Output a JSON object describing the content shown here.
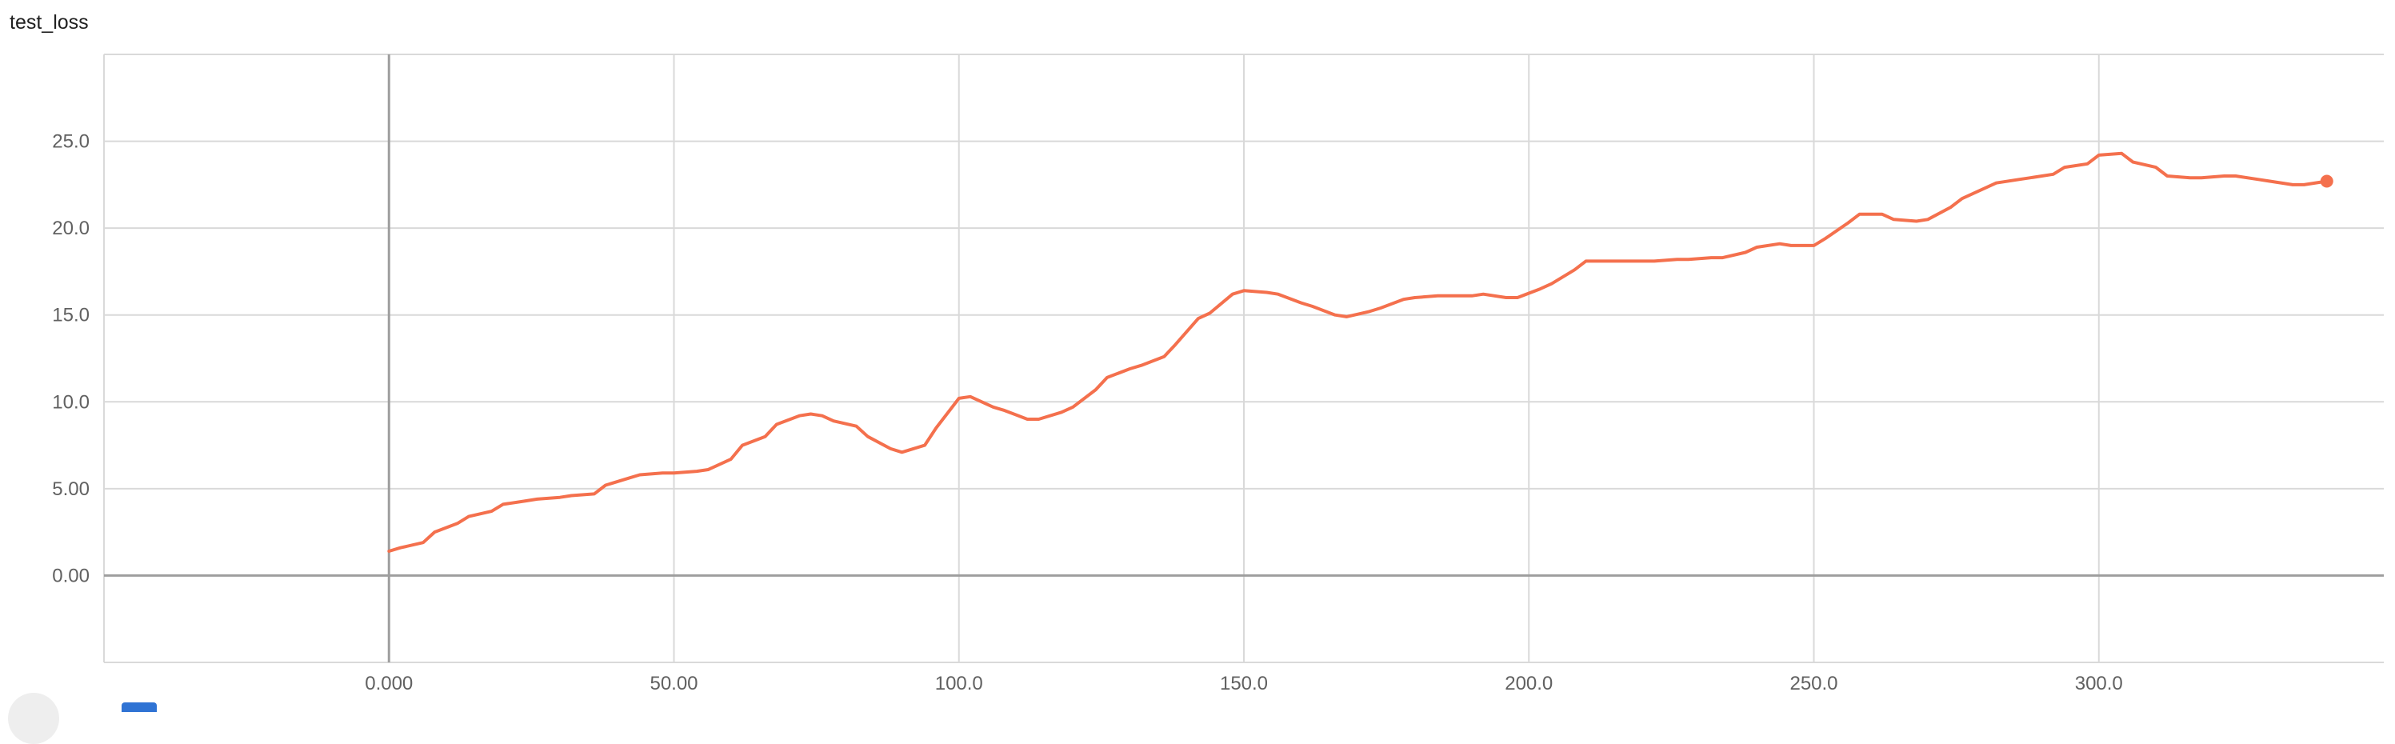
{
  "title": "test_loss",
  "chart_data": {
    "type": "line",
    "title": "test_loss",
    "xlabel": "",
    "ylabel": "",
    "xlim": [
      -50,
      350
    ],
    "ylim": [
      -5,
      30
    ],
    "x_ticks": [
      0,
      50,
      100,
      150,
      200,
      250,
      300
    ],
    "x_tick_labels": [
      "0.000",
      "50.00",
      "100.0",
      "150.0",
      "200.0",
      "250.0",
      "300.0"
    ],
    "y_ticks": [
      0,
      5,
      10,
      15,
      20,
      25
    ],
    "y_tick_labels": [
      "0.00",
      "5.00",
      "10.0",
      "15.0",
      "20.0",
      "25.0"
    ],
    "grid": true,
    "colors": {
      "line": "#f4704d",
      "grid": "#d9d9d9",
      "axis": "#9e9e9e"
    },
    "series": [
      {
        "x": [
          0,
          2,
          6,
          8,
          12,
          14,
          18,
          20,
          24,
          26,
          30,
          32,
          36,
          38,
          42,
          44,
          48,
          50,
          54,
          56,
          60,
          62,
          66,
          68,
          72,
          74,
          76,
          78,
          82,
          84,
          88,
          90,
          94,
          96,
          100,
          102,
          106,
          108,
          112,
          114,
          118,
          120,
          124,
          126,
          130,
          132,
          136,
          138,
          142,
          144,
          148,
          150,
          154,
          156,
          160,
          162,
          166,
          168,
          172,
          174,
          178,
          180,
          184,
          186,
          190,
          192,
          196,
          198,
          202,
          204,
          208,
          210,
          214,
          216,
          220,
          222,
          226,
          228,
          232,
          234,
          238,
          240,
          244,
          246,
          250,
          252,
          256,
          258,
          262,
          264,
          268,
          270,
          274,
          276,
          280,
          282,
          286,
          288,
          292,
          294,
          298,
          300,
          304,
          306,
          310,
          312,
          316,
          318,
          322,
          324,
          328,
          330,
          334,
          336,
          340
        ],
        "y": [
          1.4,
          1.6,
          1.9,
          2.5,
          3.0,
          3.4,
          3.7,
          4.1,
          4.3,
          4.4,
          4.5,
          4.6,
          4.7,
          5.2,
          5.6,
          5.8,
          5.9,
          5.9,
          6.0,
          6.1,
          6.7,
          7.5,
          8.0,
          8.7,
          9.2,
          9.3,
          9.2,
          8.9,
          8.6,
          8.0,
          7.3,
          7.1,
          7.5,
          8.5,
          10.2,
          10.3,
          9.7,
          9.5,
          9.0,
          9.0,
          9.4,
          9.7,
          10.7,
          11.4,
          11.9,
          12.1,
          12.6,
          13.3,
          14.8,
          15.1,
          16.2,
          16.4,
          16.3,
          16.2,
          15.7,
          15.5,
          15.0,
          14.9,
          15.2,
          15.4,
          15.9,
          16.0,
          16.1,
          16.1,
          16.1,
          16.2,
          16.0,
          16.0,
          16.5,
          16.8,
          17.6,
          18.1,
          18.1,
          18.1,
          18.1,
          18.1,
          18.2,
          18.2,
          18.3,
          18.3,
          18.6,
          18.9,
          19.1,
          19.0,
          19.0,
          19.4,
          20.3,
          20.8,
          20.8,
          20.5,
          20.4,
          20.5,
          21.2,
          21.7,
          22.3,
          22.6,
          22.8,
          22.9,
          23.1,
          23.5,
          23.7,
          24.2,
          24.3,
          23.8,
          23.5,
          23.0,
          22.9,
          22.9,
          23.0,
          23.0,
          22.8,
          22.7,
          22.5,
          22.5,
          22.7
        ]
      }
    ]
  }
}
